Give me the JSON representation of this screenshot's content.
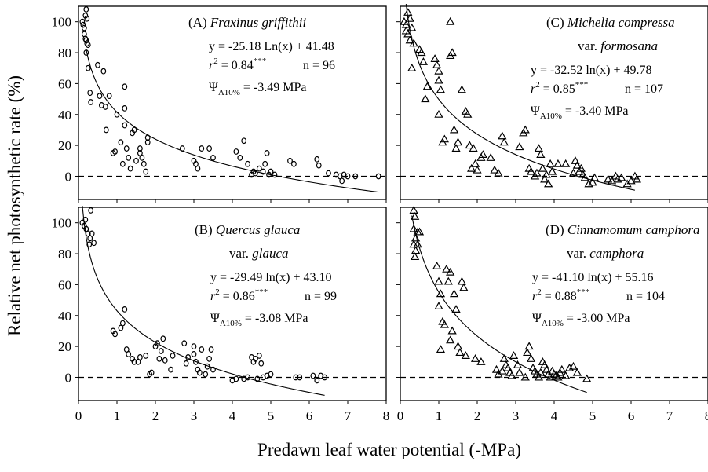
{
  "chart_data": {
    "type": "scatter",
    "y_axis_label": "Relative net photosynthetic rate (%)",
    "x_axis_label": "Predawn leaf water potential (-MPa)",
    "x_ticks": [
      "0",
      "1",
      "2",
      "3",
      "4",
      "5",
      "6",
      "7",
      "8"
    ],
    "y_ticks": [
      "0",
      "20",
      "40",
      "60",
      "80",
      "100"
    ],
    "xlim": [
      0,
      8
    ],
    "ylim": [
      -15,
      110
    ],
    "reference_line": {
      "y": 0,
      "style": "dashed"
    },
    "panels": [
      {
        "id": "A",
        "label": "(A)",
        "species": "Fraxinus griffithii",
        "variety": "",
        "equation": "y = -25.18 Ln(x) + 41.48",
        "r2": "r² = 0.84***",
        "n": "n = 96",
        "psi": "ΨA10% = -3.49 MPa",
        "marker": "circle",
        "fit": {
          "a": -25.18,
          "b": 41.48,
          "x_range": [
            0.2,
            7.8
          ]
        },
        "points": [
          [
            0.1,
            100
          ],
          [
            0.12,
            98
          ],
          [
            0.15,
            96
          ],
          [
            0.18,
            104
          ],
          [
            0.2,
            108
          ],
          [
            0.22,
            102
          ],
          [
            0.15,
            92
          ],
          [
            0.18,
            89
          ],
          [
            0.2,
            88
          ],
          [
            0.22,
            86
          ],
          [
            0.25,
            85
          ],
          [
            0.2,
            80
          ],
          [
            0.25,
            70
          ],
          [
            0.3,
            54
          ],
          [
            0.32,
            48
          ],
          [
            0.5,
            72
          ],
          [
            0.55,
            52
          ],
          [
            0.6,
            46
          ],
          [
            0.65,
            68
          ],
          [
            0.7,
            45
          ],
          [
            0.72,
            30
          ],
          [
            0.8,
            52
          ],
          [
            0.9,
            15
          ],
          [
            0.95,
            16
          ],
          [
            1.0,
            40
          ],
          [
            1.1,
            22
          ],
          [
            1.15,
            8
          ],
          [
            1.2,
            58
          ],
          [
            1.2,
            44
          ],
          [
            1.2,
            33
          ],
          [
            1.25,
            18
          ],
          [
            1.3,
            12
          ],
          [
            1.35,
            5
          ],
          [
            1.4,
            28
          ],
          [
            1.45,
            30
          ],
          [
            1.5,
            10
          ],
          [
            1.6,
            15
          ],
          [
            1.6,
            18
          ],
          [
            1.65,
            12
          ],
          [
            1.7,
            8
          ],
          [
            1.75,
            3
          ],
          [
            1.8,
            25
          ],
          [
            1.8,
            22
          ],
          [
            2.7,
            18
          ],
          [
            3.0,
            10
          ],
          [
            3.05,
            8
          ],
          [
            3.1,
            5
          ],
          [
            3.2,
            18
          ],
          [
            3.4,
            18
          ],
          [
            3.5,
            12
          ],
          [
            4.1,
            16
          ],
          [
            4.2,
            12
          ],
          [
            4.3,
            23
          ],
          [
            4.4,
            8
          ],
          [
            4.5,
            1
          ],
          [
            4.55,
            3
          ],
          [
            4.6,
            2
          ],
          [
            4.7,
            5
          ],
          [
            4.8,
            3
          ],
          [
            4.85,
            8
          ],
          [
            4.9,
            15
          ],
          [
            4.95,
            1
          ],
          [
            5.0,
            3
          ],
          [
            5.1,
            1
          ],
          [
            5.5,
            10
          ],
          [
            5.6,
            8
          ],
          [
            6.2,
            11
          ],
          [
            6.25,
            7
          ],
          [
            6.5,
            2
          ],
          [
            6.7,
            1
          ],
          [
            6.8,
            0
          ],
          [
            6.85,
            -3
          ],
          [
            6.9,
            1
          ],
          [
            7.0,
            0
          ],
          [
            7.2,
            0
          ],
          [
            7.8,
            0
          ]
        ]
      },
      {
        "id": "B",
        "label": "(B)",
        "species": "Quercus glauca",
        "variety": "glauca",
        "equation": "y = -29.49 ln(x) + 43.10",
        "r2": "r² = 0.86***",
        "n": "n = 99",
        "psi": "ΨA10% = -3.08 MPa",
        "marker": "circle",
        "fit": {
          "a": -29.49,
          "b": 43.1,
          "x_range": [
            0.1,
            6.4
          ]
        },
        "points": [
          [
            0.1,
            100
          ],
          [
            0.15,
            98
          ],
          [
            0.18,
            102
          ],
          [
            0.2,
            96
          ],
          [
            0.25,
            93
          ],
          [
            0.28,
            86
          ],
          [
            0.3,
            90
          ],
          [
            0.32,
            108
          ],
          [
            0.35,
            93
          ],
          [
            0.4,
            87
          ],
          [
            0.9,
            30
          ],
          [
            0.95,
            28
          ],
          [
            1.1,
            32
          ],
          [
            1.15,
            35
          ],
          [
            1.2,
            44
          ],
          [
            1.25,
            18
          ],
          [
            1.3,
            15
          ],
          [
            1.4,
            12
          ],
          [
            1.45,
            10
          ],
          [
            1.55,
            10
          ],
          [
            1.6,
            13
          ],
          [
            1.75,
            14
          ],
          [
            1.85,
            2
          ],
          [
            1.9,
            3
          ],
          [
            2.0,
            20
          ],
          [
            2.05,
            22
          ],
          [
            2.1,
            12
          ],
          [
            2.15,
            17
          ],
          [
            2.2,
            25
          ],
          [
            2.25,
            11
          ],
          [
            2.4,
            5
          ],
          [
            2.45,
            14
          ],
          [
            2.75,
            22
          ],
          [
            2.8,
            9
          ],
          [
            2.85,
            13
          ],
          [
            3.0,
            20
          ],
          [
            3.0,
            15
          ],
          [
            3.05,
            10
          ],
          [
            3.1,
            5
          ],
          [
            3.15,
            3
          ],
          [
            3.2,
            18
          ],
          [
            3.3,
            2
          ],
          [
            3.35,
            7
          ],
          [
            3.4,
            12
          ],
          [
            3.45,
            18
          ],
          [
            3.5,
            5
          ],
          [
            4.0,
            -2
          ],
          [
            4.1,
            -1
          ],
          [
            4.3,
            -1
          ],
          [
            4.4,
            0
          ],
          [
            4.5,
            13
          ],
          [
            4.55,
            10
          ],
          [
            4.6,
            12
          ],
          [
            4.65,
            -1
          ],
          [
            4.7,
            14
          ],
          [
            4.75,
            9
          ],
          [
            4.8,
            0
          ],
          [
            4.9,
            1
          ],
          [
            5.0,
            2
          ],
          [
            5.65,
            0
          ],
          [
            5.75,
            0
          ],
          [
            6.1,
            1
          ],
          [
            6.2,
            -2
          ],
          [
            6.3,
            1
          ],
          [
            6.4,
            0
          ]
        ]
      },
      {
        "id": "C",
        "label": "(C)",
        "species": "Michelia compressa",
        "variety": "formosana",
        "equation": "y = -32.52 ln(x) + 49.78",
        "r2": "r² = 0.85***",
        "n": "n = 107",
        "psi": "ΨA10% = -3.40 MPa",
        "marker": "triangle",
        "fit": {
          "a": -32.52,
          "b": 49.78,
          "x_range": [
            0.15,
            6.1
          ]
        },
        "points": [
          [
            0.1,
            100
          ],
          [
            0.15,
            98
          ],
          [
            0.2,
            106
          ],
          [
            0.25,
            102
          ],
          [
            0.15,
            94
          ],
          [
            0.2,
            92
          ],
          [
            0.25,
            88
          ],
          [
            0.3,
            96
          ],
          [
            0.3,
            70
          ],
          [
            0.35,
            86
          ],
          [
            0.5,
            82
          ],
          [
            0.55,
            80
          ],
          [
            0.6,
            74
          ],
          [
            0.65,
            50
          ],
          [
            0.7,
            58
          ],
          [
            0.9,
            76
          ],
          [
            0.95,
            72
          ],
          [
            1.0,
            68
          ],
          [
            1.0,
            62
          ],
          [
            1.0,
            40
          ],
          [
            1.05,
            56
          ],
          [
            1.1,
            22
          ],
          [
            1.15,
            24
          ],
          [
            1.3,
            100
          ],
          [
            1.3,
            78
          ],
          [
            1.35,
            80
          ],
          [
            1.4,
            30
          ],
          [
            1.45,
            18
          ],
          [
            1.5,
            22
          ],
          [
            1.6,
            56
          ],
          [
            1.7,
            42
          ],
          [
            1.75,
            40
          ],
          [
            1.8,
            20
          ],
          [
            1.85,
            5
          ],
          [
            1.9,
            18
          ],
          [
            1.95,
            8
          ],
          [
            2.0,
            4
          ],
          [
            2.1,
            12
          ],
          [
            2.15,
            14
          ],
          [
            2.35,
            12
          ],
          [
            2.45,
            4
          ],
          [
            2.55,
            2
          ],
          [
            2.65,
            26
          ],
          [
            2.7,
            22
          ],
          [
            3.1,
            19
          ],
          [
            3.2,
            28
          ],
          [
            3.25,
            30
          ],
          [
            3.35,
            5
          ],
          [
            3.4,
            3
          ],
          [
            3.5,
            0
          ],
          [
            3.55,
            2
          ],
          [
            3.6,
            18
          ],
          [
            3.65,
            14
          ],
          [
            3.7,
            5
          ],
          [
            3.75,
            -2
          ],
          [
            3.8,
            1
          ],
          [
            3.85,
            -5
          ],
          [
            3.9,
            8
          ],
          [
            3.95,
            3
          ],
          [
            4.1,
            8
          ],
          [
            4.3,
            8
          ],
          [
            4.5,
            2
          ],
          [
            4.55,
            10
          ],
          [
            4.6,
            7
          ],
          [
            4.65,
            3
          ],
          [
            4.7,
            5
          ],
          [
            4.75,
            1
          ],
          [
            4.8,
            -1
          ],
          [
            4.9,
            -5
          ],
          [
            5.0,
            -4
          ],
          [
            5.05,
            -1
          ],
          [
            5.4,
            -2
          ],
          [
            5.5,
            -3
          ],
          [
            5.6,
            0
          ],
          [
            5.65,
            -2
          ],
          [
            5.75,
            -1
          ],
          [
            5.9,
            -5
          ],
          [
            6.0,
            -3
          ],
          [
            6.1,
            0
          ],
          [
            6.15,
            -2
          ]
        ]
      },
      {
        "id": "D",
        "label": "(D)",
        "species": "Cinnamomum camphora",
        "variety": "camphora",
        "equation": "y = -41.10 ln(x) + 55.16",
        "r2": "r² = 0.88***",
        "n": "n = 104",
        "psi": "ΨA10% = -3.00 MPa",
        "marker": "triangle",
        "fit": {
          "a": -41.1,
          "b": 55.16,
          "x_range": [
            0.3,
            4.85
          ]
        },
        "points": [
          [
            0.35,
            108
          ],
          [
            0.38,
            104
          ],
          [
            0.35,
            96
          ],
          [
            0.4,
            90
          ],
          [
            0.35,
            86
          ],
          [
            0.4,
            82
          ],
          [
            0.38,
            78
          ],
          [
            0.45,
            94
          ],
          [
            0.5,
            94
          ],
          [
            0.45,
            86
          ],
          [
            0.95,
            72
          ],
          [
            1.0,
            62
          ],
          [
            1.05,
            54
          ],
          [
            1.0,
            46
          ],
          [
            1.1,
            36
          ],
          [
            1.15,
            34
          ],
          [
            1.05,
            18
          ],
          [
            1.2,
            70
          ],
          [
            1.25,
            62
          ],
          [
            1.3,
            68
          ],
          [
            1.3,
            24
          ],
          [
            1.35,
            30
          ],
          [
            1.4,
            54
          ],
          [
            1.45,
            44
          ],
          [
            1.5,
            20
          ],
          [
            1.55,
            16
          ],
          [
            1.6,
            62
          ],
          [
            1.65,
            58
          ],
          [
            1.7,
            14
          ],
          [
            1.95,
            12
          ],
          [
            2.1,
            10
          ],
          [
            2.5,
            5
          ],
          [
            2.55,
            2
          ],
          [
            2.65,
            4
          ],
          [
            2.7,
            12
          ],
          [
            2.75,
            8
          ],
          [
            2.8,
            6
          ],
          [
            2.85,
            3
          ],
          [
            2.9,
            1
          ],
          [
            2.95,
            14
          ],
          [
            3.05,
            8
          ],
          [
            3.1,
            3
          ],
          [
            3.25,
            0
          ],
          [
            3.3,
            16
          ],
          [
            3.35,
            20
          ],
          [
            3.4,
            12
          ],
          [
            3.45,
            6
          ],
          [
            3.5,
            4
          ],
          [
            3.55,
            2
          ],
          [
            3.6,
            0
          ],
          [
            3.65,
            3
          ],
          [
            3.7,
            10
          ],
          [
            3.75,
            8
          ],
          [
            3.8,
            5
          ],
          [
            3.85,
            2
          ],
          [
            3.9,
            0
          ],
          [
            3.95,
            4
          ],
          [
            4.0,
            2
          ],
          [
            4.05,
            1
          ],
          [
            4.1,
            0
          ],
          [
            4.15,
            3
          ],
          [
            4.2,
            5
          ],
          [
            4.3,
            1
          ],
          [
            4.4,
            6
          ],
          [
            4.5,
            7
          ],
          [
            4.6,
            3
          ],
          [
            4.85,
            -1
          ]
        ]
      }
    ]
  }
}
